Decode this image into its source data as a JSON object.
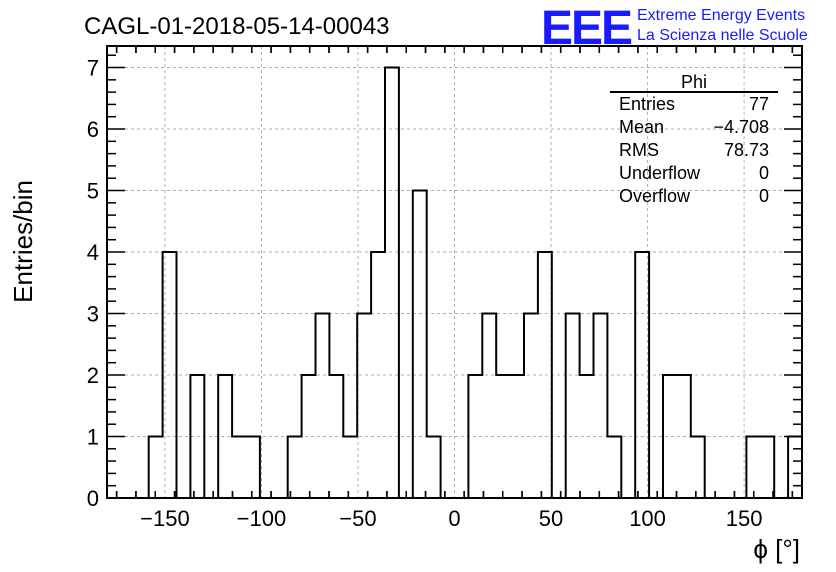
{
  "chart_data": {
    "type": "bar",
    "title": "CAGL-01-2018-05-14-00043",
    "xlabel": "ϕ [°]",
    "ylabel": "Entries/bin",
    "xlim": [
      -180,
      180
    ],
    "ylim": [
      0,
      7.35
    ],
    "bin_width": 7.2,
    "bin_edges_start": -180,
    "values": [
      0,
      0,
      0,
      1,
      4,
      0,
      2,
      0,
      2,
      1,
      1,
      0,
      0,
      1,
      2,
      3,
      2,
      1,
      3,
      4,
      7,
      0,
      5,
      1,
      0,
      0,
      2,
      3,
      2,
      2,
      3,
      4,
      0,
      3,
      2,
      3,
      1,
      0,
      4,
      0,
      2,
      2,
      1,
      0,
      0,
      0,
      1,
      1,
      0,
      1
    ],
    "x_ticks": [
      -150,
      -100,
      -50,
      0,
      50,
      100,
      150
    ],
    "x_tick_labels": [
      "−150",
      "−100",
      "−50",
      "0",
      "50",
      "100",
      "150"
    ],
    "y_ticks": [
      0,
      1,
      2,
      3,
      4,
      5,
      6,
      7
    ],
    "y_tick_labels": [
      "0",
      "1",
      "2",
      "3",
      "4",
      "5",
      "6",
      "7"
    ],
    "grid": true,
    "legend": "none"
  },
  "stats_box": {
    "name": "Phi",
    "rows": [
      {
        "label": "Entries",
        "value": "77"
      },
      {
        "label": "Mean",
        "value": "−4.708"
      },
      {
        "label": "RMS",
        "value": "78.73"
      },
      {
        "label": "Underflow",
        "value": "0"
      },
      {
        "label": "Overflow",
        "value": "0"
      }
    ]
  },
  "logo": {
    "text": "EEE",
    "line1": "Extreme Energy Events",
    "line2": "La Scienza nelle Scuole",
    "color": "#1a1aff"
  }
}
